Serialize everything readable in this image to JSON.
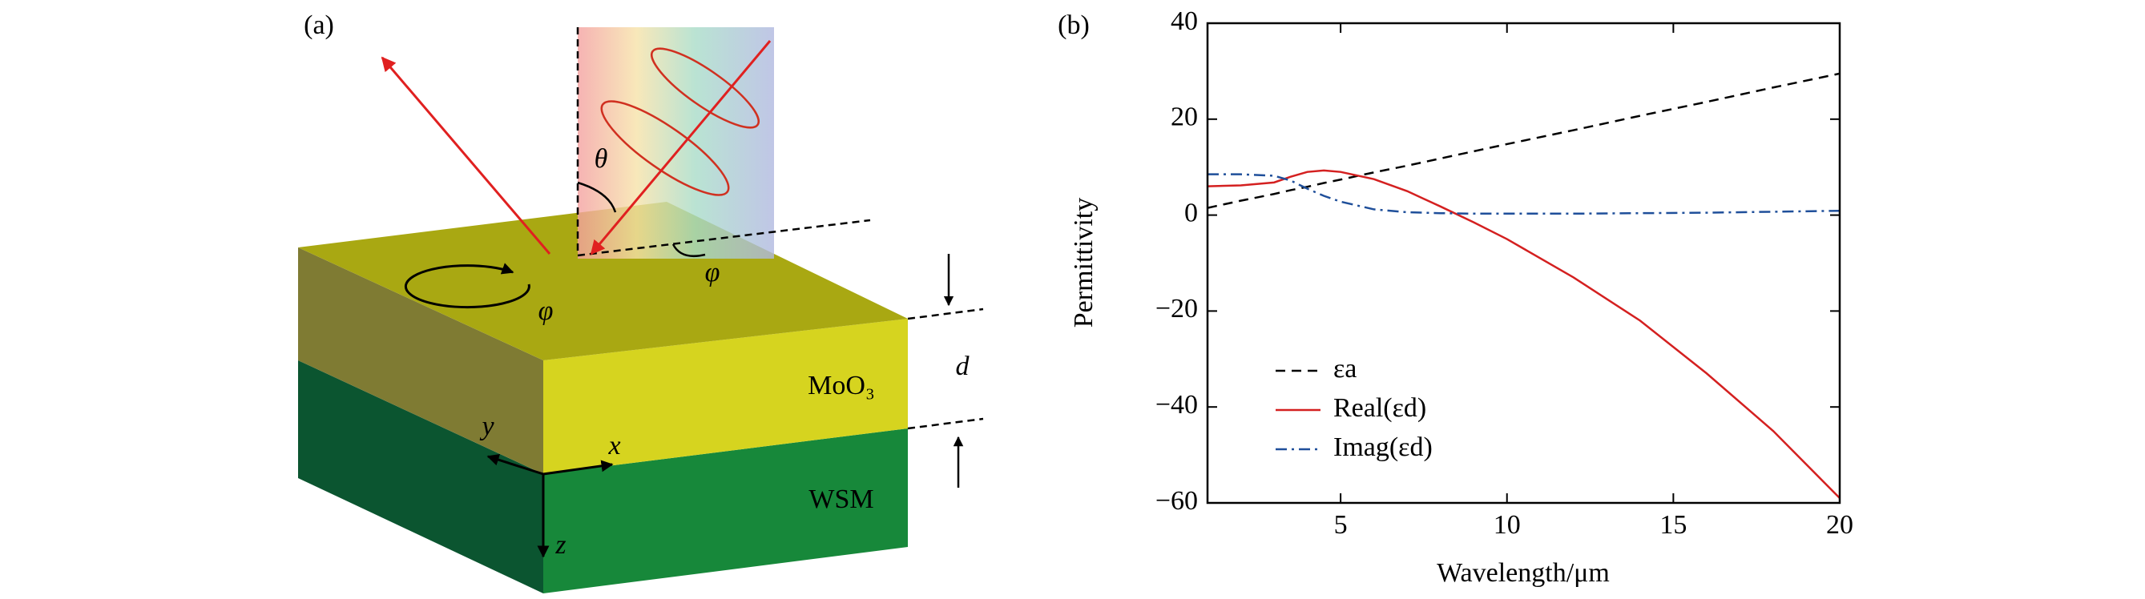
{
  "panel_a": {
    "label": "(a)",
    "theta": "θ",
    "phi_1": "φ",
    "phi_2": "φ",
    "thickness": "d",
    "layer_top": "MoO₃",
    "layer_bottom": "WSM",
    "axis_x": "x",
    "axis_y": "y",
    "axis_z": "z"
  },
  "chart_data": {
    "type": "line",
    "label": "(b)",
    "x_label": "Wavelength/μm",
    "y_label": "Permittivity",
    "x": [
      1,
      2,
      3,
      3.5,
      4,
      4.5,
      5,
      6,
      7,
      8,
      9,
      10,
      12,
      14,
      16,
      18,
      20
    ],
    "series": [
      {
        "name": "εa",
        "color": "#000000",
        "dash": "dashed",
        "values": [
          1.5,
          3.0,
          4.4,
          5.2,
          5.9,
          6.7,
          7.4,
          8.9,
          10.3,
          11.8,
          13.3,
          14.8,
          17.7,
          20.7,
          23.6,
          26.6,
          29.5
        ]
      },
      {
        "name": "Real(εd)",
        "color": "#d42020",
        "dash": "solid",
        "values": [
          6.0,
          6.2,
          6.8,
          8.0,
          9.0,
          9.3,
          9.0,
          7.5,
          5.0,
          1.8,
          -1.5,
          -5.0,
          -13,
          -22,
          -33,
          -45,
          -59
        ]
      },
      {
        "name": "Imag(εd)",
        "color": "#1f4f9a",
        "dash": "dashdot",
        "values": [
          8.5,
          8.5,
          8.2,
          7.2,
          5.5,
          4.0,
          2.8,
          1.2,
          0.6,
          0.4,
          0.3,
          0.3,
          0.3,
          0.4,
          0.5,
          0.7,
          0.9
        ]
      }
    ],
    "xlim": [
      1,
      20
    ],
    "xticks": [
      5,
      10,
      15,
      20
    ],
    "ylim": [
      -60,
      40
    ],
    "yticks": [
      {
        "value": -60,
        "label": "−60"
      },
      {
        "value": -40,
        "label": "−40"
      },
      {
        "value": -20,
        "label": "−20"
      },
      0,
      20,
      40
    ],
    "legend": "lower left"
  }
}
